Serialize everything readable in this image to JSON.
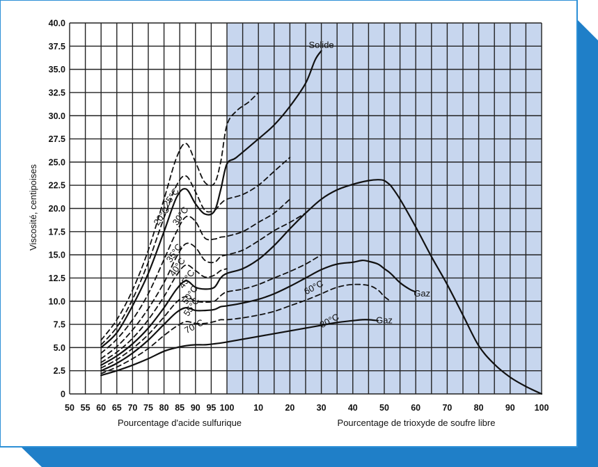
{
  "colors": {
    "frame_blue": "#1f7fc8",
    "frame_border": "#2c8fd6",
    "shade": "#c7d6ee",
    "grid": "#222222",
    "curve": "#111111"
  },
  "chart_data": {
    "type": "line",
    "ylabel": "Viscosité, centipoises",
    "xlabel_left": "Pourcentage d'acide sulfurique",
    "xlabel_right": "Pourcentage de trioxyde de soufre libre",
    "ylim": [
      0,
      40
    ],
    "y_ticks": [
      "0",
      "2.5",
      "5.0",
      "7.5",
      "10.0",
      "12.5",
      "15.0",
      "17.5",
      "20.0",
      "22.5",
      "25.0",
      "27.5",
      "30.0",
      "32.5",
      "35.0",
      "37.5",
      "40.0"
    ],
    "x_ticks_left": [
      "50",
      "55",
      "60",
      "65",
      "70",
      "75",
      "80",
      "85",
      "90",
      "95",
      "100"
    ],
    "x_ticks_right": [
      "10",
      "20",
      "30",
      "40",
      "50",
      "60",
      "70",
      "80",
      "90",
      "100"
    ],
    "shaded_region": "trioxyde de soufre libre (oléum)",
    "grid": true,
    "x_note": "x in combined scale: 50–100 = % acide sulfurique, 100–200 = 100 + % SO3 libre",
    "series": [
      {
        "name": "20°C",
        "style": "dashed",
        "x": [
          60,
          65,
          70,
          75,
          80,
          84,
          87,
          90,
          93,
          96,
          98,
          100,
          103,
          107,
          110
        ],
        "y": [
          5.8,
          8.0,
          11.2,
          15.5,
          21.0,
          25.5,
          27.0,
          25.0,
          22.8,
          22.7,
          25.0,
          29.0,
          30.5,
          31.5,
          32.5
        ]
      },
      {
        "name": "25°C",
        "style": "dashed",
        "x": [
          60,
          65,
          70,
          75,
          80,
          84,
          87,
          90,
          93,
          96,
          98,
          100,
          105,
          110,
          115,
          120
        ],
        "y": [
          5.3,
          7.2,
          10.2,
          14.2,
          19.0,
          22.5,
          23.5,
          21.8,
          19.8,
          19.8,
          20.5,
          21.0,
          21.5,
          22.5,
          24.0,
          25.5
        ]
      },
      {
        "name": "30°C",
        "style": "solid",
        "x": [
          60,
          65,
          70,
          75,
          80,
          84,
          87,
          90,
          93,
          96,
          98,
          100,
          103,
          110,
          115,
          120,
          125,
          128,
          130
        ],
        "y": [
          5.0,
          6.6,
          9.5,
          13.0,
          17.5,
          21.2,
          22.1,
          20.5,
          19.4,
          19.7,
          22.0,
          24.8,
          25.5,
          27.5,
          29.0,
          31.0,
          33.5,
          36.0,
          37.0
        ]
      },
      {
        "name": "35°C",
        "style": "dashed",
        "x": [
          60,
          65,
          70,
          75,
          80,
          84,
          87,
          90,
          93,
          96,
          98,
          100,
          105,
          110,
          115,
          120
        ],
        "y": [
          4.4,
          5.9,
          8.0,
          10.8,
          14.5,
          17.5,
          19.1,
          18.6,
          16.8,
          16.7,
          16.9,
          17.0,
          17.5,
          18.5,
          19.5,
          21.0
        ]
      },
      {
        "name": "40°C",
        "style": "dashed",
        "x": [
          60,
          65,
          70,
          75,
          80,
          84,
          87,
          90,
          93,
          96,
          98,
          100,
          105,
          110,
          115,
          120,
          125
        ],
        "y": [
          3.8,
          5.1,
          6.9,
          9.2,
          12.0,
          14.8,
          16.2,
          15.8,
          14.4,
          14.2,
          14.8,
          15.0,
          15.5,
          16.5,
          17.6,
          18.5,
          19.5
        ]
      },
      {
        "name": "45°C",
        "style": "dashed",
        "x": [
          60,
          65,
          70,
          75,
          80,
          84,
          87,
          90,
          93,
          96,
          98,
          100
        ],
        "y": [
          3.4,
          4.5,
          6.0,
          8.0,
          10.5,
          12.8,
          13.9,
          13.3,
          12.6,
          12.8,
          13.3,
          13.5
        ]
      },
      {
        "name": "50°C",
        "style": "solid",
        "x": [
          60,
          65,
          70,
          75,
          80,
          84,
          87,
          90,
          93,
          96,
          98,
          100,
          105,
          110,
          115,
          120,
          125,
          130,
          135,
          140,
          145,
          148,
          150,
          152
        ],
        "y": [
          3.1,
          4.1,
          5.4,
          7.1,
          9.3,
          11.3,
          12.2,
          11.5,
          11.3,
          11.5,
          12.5,
          13.0,
          13.5,
          14.5,
          16.0,
          17.8,
          19.5,
          21.0,
          22.0,
          22.6,
          23.0,
          23.1,
          23.0,
          22.5
        ]
      },
      {
        "name": "55°C",
        "style": "dashed",
        "x": [
          60,
          65,
          70,
          75,
          80,
          84,
          87,
          90,
          93,
          96,
          98,
          100,
          105,
          110,
          115,
          120,
          125,
          130
        ],
        "y": [
          2.8,
          3.7,
          4.9,
          6.4,
          8.3,
          9.9,
          10.5,
          10.0,
          9.9,
          10.0,
          10.6,
          11.0,
          11.3,
          11.8,
          12.5,
          13.2,
          14.0,
          15.0
        ]
      },
      {
        "name": "60°C",
        "style": "solid",
        "x": [
          60,
          65,
          70,
          75,
          80,
          84,
          87,
          90,
          93,
          96,
          98,
          100,
          105,
          110,
          115,
          120,
          125,
          130,
          135,
          140,
          143,
          145,
          148,
          150,
          152,
          155,
          158,
          160
        ],
        "y": [
          2.5,
          3.3,
          4.4,
          5.8,
          7.5,
          8.8,
          9.3,
          9.0,
          9.0,
          9.1,
          9.4,
          9.5,
          9.8,
          10.2,
          10.8,
          11.6,
          12.5,
          13.4,
          14.0,
          14.2,
          14.4,
          14.3,
          14.0,
          13.5,
          13.0,
          12.0,
          11.3,
          11.0
        ]
      },
      {
        "name": "70°C",
        "style": "dashed",
        "x": [
          60,
          65,
          70,
          75,
          80,
          84,
          87,
          90,
          93,
          96,
          98,
          100,
          105,
          110,
          115,
          120,
          125,
          130,
          135,
          140,
          145,
          148,
          150,
          152
        ],
        "y": [
          2.2,
          2.9,
          3.8,
          4.9,
          6.3,
          7.3,
          7.8,
          7.6,
          7.6,
          7.8,
          8.0,
          8.0,
          8.2,
          8.5,
          8.9,
          9.5,
          10.1,
          10.8,
          11.5,
          11.8,
          11.7,
          11.2,
          10.5,
          10.0
        ]
      },
      {
        "name": "80°C",
        "style": "solid",
        "x": [
          60,
          65,
          70,
          75,
          80,
          84,
          87,
          90,
          93,
          96,
          100,
          105,
          110,
          115,
          120,
          125,
          130,
          135,
          140,
          143,
          145,
          148
        ],
        "y": [
          2.0,
          2.5,
          3.1,
          3.8,
          4.6,
          5.0,
          5.2,
          5.3,
          5.3,
          5.4,
          5.6,
          5.9,
          6.2,
          6.5,
          6.8,
          7.1,
          7.4,
          7.7,
          7.9,
          8.0,
          8.0,
          7.9
        ]
      },
      {
        "name": "",
        "style": "solid",
        "x": [
          152,
          155,
          160,
          165,
          170,
          175,
          180,
          185,
          190,
          195,
          200
        ],
        "y": [
          22.5,
          21.0,
          18.0,
          14.8,
          11.8,
          8.5,
          5.2,
          3.2,
          1.8,
          0.8,
          0.0
        ]
      }
    ],
    "annotations": [
      {
        "text": "20°C",
        "x": 80,
        "y": 19
      },
      {
        "text": "25°C",
        "x": 83,
        "y": 21
      },
      {
        "text": "30°C",
        "x": 86,
        "y": 19
      },
      {
        "text": "35°C",
        "x": 84,
        "y": 15
      },
      {
        "text": "40°C",
        "x": 85,
        "y": 13.5
      },
      {
        "text": "45°C",
        "x": 88,
        "y": 12.2
      },
      {
        "text": "50°C",
        "x": 89,
        "y": 10.5
      },
      {
        "text": "55°C",
        "x": 89.5,
        "y": 9.2
      },
      {
        "text": "70°C",
        "x": 90,
        "y": 7.0
      },
      {
        "text": "60°C",
        "x": 128,
        "y": 11.2
      },
      {
        "text": "80°C",
        "x": 133,
        "y": 7.6
      },
      {
        "text": "Solide",
        "x": 130,
        "y": 37.3
      },
      {
        "text": "Gaz",
        "x": 162,
        "y": 10.5
      },
      {
        "text": "Gaz",
        "x": 150,
        "y": 7.6
      }
    ]
  }
}
